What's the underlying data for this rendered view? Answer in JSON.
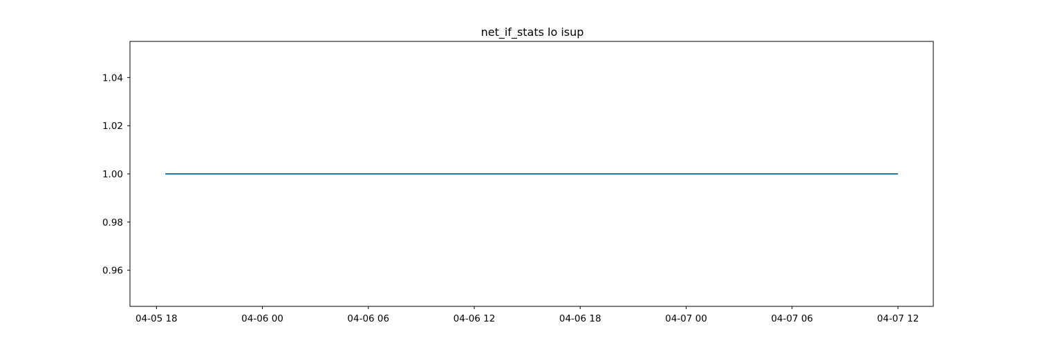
{
  "chart_data": {
    "type": "line",
    "title": "net_if_stats lo isup",
    "xlabel": "",
    "ylabel": "",
    "x_type": "datetime",
    "xlim": [
      "2024-04-05 16:30",
      "2024-04-07 14:00"
    ],
    "ylim": [
      0.945,
      1.055
    ],
    "x_ticks": [
      {
        "value": "2024-04-05 18:00",
        "label": "04-05 18"
      },
      {
        "value": "2024-04-06 00:00",
        "label": "04-06 00"
      },
      {
        "value": "2024-04-06 06:00",
        "label": "04-06 06"
      },
      {
        "value": "2024-04-06 12:00",
        "label": "04-06 12"
      },
      {
        "value": "2024-04-06 18:00",
        "label": "04-06 18"
      },
      {
        "value": "2024-04-07 00:00",
        "label": "04-07 00"
      },
      {
        "value": "2024-04-07 06:00",
        "label": "04-07 06"
      },
      {
        "value": "2024-04-07 12:00",
        "label": "04-07 12"
      }
    ],
    "y_ticks": [
      {
        "value": 0.96,
        "label": "0.96"
      },
      {
        "value": 0.98,
        "label": "0.98"
      },
      {
        "value": 1.0,
        "label": "1.00"
      },
      {
        "value": 1.02,
        "label": "1.02"
      },
      {
        "value": 1.04,
        "label": "1.04"
      }
    ],
    "grid": false,
    "legend": "none",
    "series": [
      {
        "color": "#1f77b4",
        "points": [
          {
            "x": "2024-04-05 18:30",
            "y": 1.0
          },
          {
            "x": "2024-04-07 12:00",
            "y": 1.0
          }
        ]
      }
    ]
  }
}
